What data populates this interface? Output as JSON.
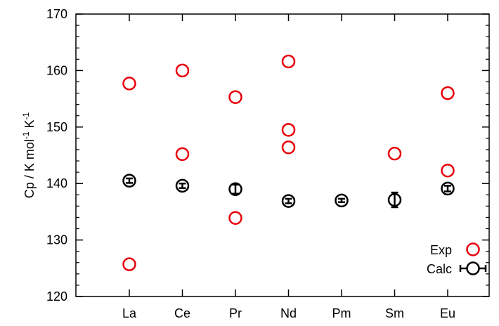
{
  "chart_data": {
    "type": "scatter",
    "title": "",
    "xlabel": "",
    "ylabel": "Cp / K mol-1 K-1",
    "ylabel_parts": {
      "base": "Cp / K mol",
      "sup1": "-1",
      "mid": " K",
      "sup2": "-1"
    },
    "categories": [
      "La",
      "Ce",
      "Pr",
      "Nd",
      "Pm",
      "Sm",
      "Eu"
    ],
    "ylim": [
      120,
      170
    ],
    "yticks": [
      120,
      130,
      140,
      150,
      160,
      170
    ],
    "ytick_labels": [
      "120",
      "130",
      "140",
      "150",
      "160",
      "170"
    ],
    "grid": false,
    "legend_position": "bottom-right",
    "series": [
      {
        "name": "Exp",
        "color": "#e8000b",
        "marker": "open-circle",
        "points": [
          {
            "x": "La",
            "y": 157.7
          },
          {
            "x": "La",
            "y": 125.7
          },
          {
            "x": "Ce",
            "y": 160.0
          },
          {
            "x": "Ce",
            "y": 145.2
          },
          {
            "x": "Pr",
            "y": 155.3
          },
          {
            "x": "Pr",
            "y": 133.9
          },
          {
            "x": "Nd",
            "y": 161.6
          },
          {
            "x": "Nd",
            "y": 149.5
          },
          {
            "x": "Nd",
            "y": 146.4
          },
          {
            "x": "Sm",
            "y": 145.3
          },
          {
            "x": "Eu",
            "y": 156.0
          },
          {
            "x": "Eu",
            "y": 142.3
          }
        ]
      },
      {
        "name": "Calc",
        "color": "#000000",
        "marker": "open-circle-errorbar",
        "points": [
          {
            "x": "La",
            "y": 140.5,
            "err": 0.4
          },
          {
            "x": "Ce",
            "y": 139.6,
            "err": 0.4
          },
          {
            "x": "Pr",
            "y": 139.0,
            "err": 0.8
          },
          {
            "x": "Nd",
            "y": 136.9,
            "err": 0.4
          },
          {
            "x": "Pm",
            "y": 137.0,
            "err": 0.3
          },
          {
            "x": "Sm",
            "y": 137.1,
            "err": 1.3
          },
          {
            "x": "Eu",
            "y": 139.1,
            "err": 0.5
          }
        ]
      }
    ]
  }
}
